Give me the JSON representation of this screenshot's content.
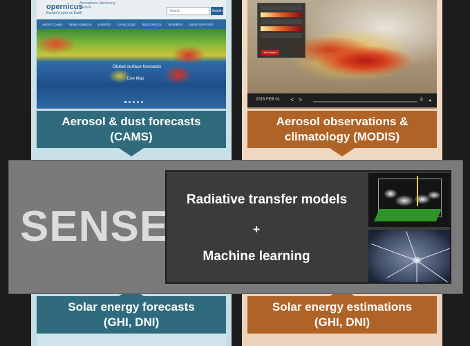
{
  "left_column": {
    "screenshot": {
      "logo": "opernicus",
      "logo_sub": "Europe's eyes on Earth",
      "service": "Atmosphere Monitoring Service",
      "search_placeholder": "Search",
      "search_button": "Search",
      "nav": [
        "ABOUT CAMS",
        "NEWS & MEDIA",
        "EVENTS",
        "CATALOGUE",
        "RESOURCES",
        "TENDERS",
        "USER SUPPORT"
      ],
      "map_caption": "Global surface forecasts",
      "map_link": "Live Map"
    },
    "top_caption": {
      "line1": "Aerosol & dust forecasts",
      "line2": "(CAMS)"
    },
    "bottom_caption": {
      "line1": "Solar energy forecasts",
      "line2": "(GHI, DNI)"
    },
    "color": "#2f6b7c"
  },
  "right_column": {
    "screenshot": {
      "date": "2015 FEB 01",
      "button": "Add layers",
      "controls": [
        "<",
        ">",
        "II",
        "◂"
      ]
    },
    "top_caption": {
      "line1": "Aerosol observations &",
      "line2": "climatology (MODIS)"
    },
    "bottom_caption": {
      "line1": "Solar energy estimations",
      "line2": "(GHI, DNI)"
    },
    "color": "#b06326"
  },
  "banner": {
    "title": "SENSE",
    "line1": "Radiative transfer models",
    "plus": "+",
    "line2": "Machine learning",
    "icons": [
      "3d-cloud-icon",
      "neuron-icon"
    ]
  }
}
